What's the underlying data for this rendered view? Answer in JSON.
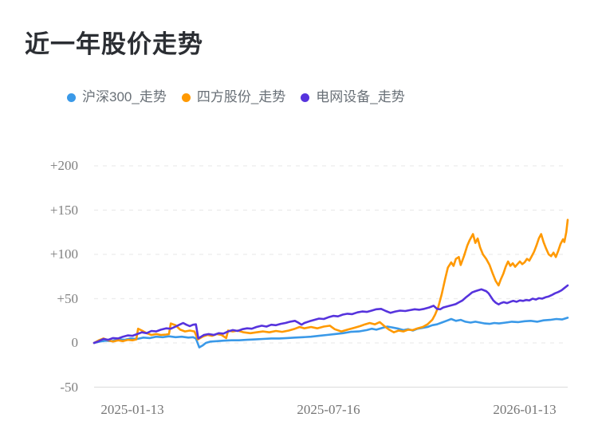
{
  "page": {
    "title": "近一年股价走势"
  },
  "chart_data": {
    "type": "line",
    "title": "近一年股价走势",
    "unit": "%",
    "legend_position": "top",
    "grid": true,
    "x_labels": [
      "2025-01-13",
      "2025-07-16",
      "2026-01-13"
    ],
    "x_range": [
      "2025-01-13",
      "2026-01-13"
    ],
    "y_labels": [
      "+200",
      "+150",
      "+100",
      "+50",
      "0",
      "-50"
    ],
    "y_ticks": [
      200,
      150,
      100,
      50,
      0,
      -50
    ],
    "y_range": [
      -50,
      200
    ],
    "series": [
      {
        "name": "沪深300_走势",
        "color": "#3a99e8",
        "points": [
          [
            0,
            0
          ],
          [
            0.012,
            1.5
          ],
          [
            0.024,
            2.5
          ],
          [
            0.037,
            2
          ],
          [
            0.051,
            4
          ],
          [
            0.064,
            3.5
          ],
          [
            0.077,
            5
          ],
          [
            0.091,
            4.5
          ],
          [
            0.104,
            6
          ],
          [
            0.118,
            5.5
          ],
          [
            0.131,
            7
          ],
          [
            0.145,
            6.5
          ],
          [
            0.158,
            7.5
          ],
          [
            0.172,
            6.5
          ],
          [
            0.185,
            7
          ],
          [
            0.199,
            6
          ],
          [
            0.209,
            6.5
          ],
          [
            0.215,
            5
          ],
          [
            0.222,
            -5
          ],
          [
            0.229,
            -3
          ],
          [
            0.236,
            0
          ],
          [
            0.246,
            1.5
          ],
          [
            0.259,
            2
          ],
          [
            0.273,
            2.5
          ],
          [
            0.29,
            3
          ],
          [
            0.306,
            3
          ],
          [
            0.323,
            3.5
          ],
          [
            0.34,
            4
          ],
          [
            0.357,
            4.5
          ],
          [
            0.374,
            5
          ],
          [
            0.391,
            5
          ],
          [
            0.407,
            5.5
          ],
          [
            0.424,
            6
          ],
          [
            0.441,
            6.5
          ],
          [
            0.458,
            7
          ],
          [
            0.475,
            8
          ],
          [
            0.492,
            9
          ],
          [
            0.508,
            10
          ],
          [
            0.525,
            11
          ],
          [
            0.542,
            12.5
          ],
          [
            0.559,
            13
          ],
          [
            0.576,
            14.5
          ],
          [
            0.586,
            16
          ],
          [
            0.596,
            15
          ],
          [
            0.609,
            17
          ],
          [
            0.619,
            18.5
          ],
          [
            0.63,
            17.5
          ],
          [
            0.643,
            16
          ],
          [
            0.653,
            14.5
          ],
          [
            0.663,
            15.5
          ],
          [
            0.673,
            14
          ],
          [
            0.683,
            16
          ],
          [
            0.694,
            17
          ],
          [
            0.704,
            18
          ],
          [
            0.714,
            20
          ],
          [
            0.724,
            21
          ],
          [
            0.734,
            23
          ],
          [
            0.744,
            25
          ],
          [
            0.754,
            27
          ],
          [
            0.764,
            25
          ],
          [
            0.774,
            26
          ],
          [
            0.784,
            24
          ],
          [
            0.795,
            23
          ],
          [
            0.805,
            24
          ],
          [
            0.815,
            23
          ],
          [
            0.825,
            22
          ],
          [
            0.835,
            21.5
          ],
          [
            0.845,
            22.5
          ],
          [
            0.855,
            22
          ],
          [
            0.869,
            23
          ],
          [
            0.882,
            24
          ],
          [
            0.896,
            23.5
          ],
          [
            0.909,
            24.5
          ],
          [
            0.922,
            25
          ],
          [
            0.936,
            24
          ],
          [
            0.949,
            25.5
          ],
          [
            0.963,
            26
          ],
          [
            0.976,
            27
          ],
          [
            0.988,
            26.5
          ],
          [
            1,
            28.5
          ]
        ]
      },
      {
        "name": "四方股份_走势",
        "color": "#ff9900",
        "points": [
          [
            0,
            0
          ],
          [
            0.01,
            3
          ],
          [
            0.02,
            5
          ],
          [
            0.03,
            3
          ],
          [
            0.04,
            1.5
          ],
          [
            0.051,
            3
          ],
          [
            0.061,
            2
          ],
          [
            0.071,
            3.5
          ],
          [
            0.081,
            3
          ],
          [
            0.089,
            4
          ],
          [
            0.093,
            16
          ],
          [
            0.101,
            14
          ],
          [
            0.111,
            11
          ],
          [
            0.121,
            9
          ],
          [
            0.131,
            10
          ],
          [
            0.141,
            9
          ],
          [
            0.152,
            9.5
          ],
          [
            0.158,
            10
          ],
          [
            0.162,
            22
          ],
          [
            0.172,
            20
          ],
          [
            0.182,
            15
          ],
          [
            0.192,
            13
          ],
          [
            0.202,
            14
          ],
          [
            0.212,
            13
          ],
          [
            0.219,
            4
          ],
          [
            0.229,
            7
          ],
          [
            0.239,
            9
          ],
          [
            0.249,
            8
          ],
          [
            0.259,
            10
          ],
          [
            0.269,
            9
          ],
          [
            0.279,
            5.5
          ],
          [
            0.283,
            14
          ],
          [
            0.293,
            13
          ],
          [
            0.303,
            14
          ],
          [
            0.316,
            12
          ],
          [
            0.33,
            11
          ],
          [
            0.343,
            12
          ],
          [
            0.357,
            13
          ],
          [
            0.37,
            12
          ],
          [
            0.384,
            13.5
          ],
          [
            0.397,
            12.5
          ],
          [
            0.411,
            14
          ],
          [
            0.424,
            16
          ],
          [
            0.434,
            18
          ],
          [
            0.444,
            16.5
          ],
          [
            0.458,
            18
          ],
          [
            0.471,
            16.5
          ],
          [
            0.485,
            18.5
          ],
          [
            0.498,
            19.5
          ],
          [
            0.508,
            15.5
          ],
          [
            0.522,
            13
          ],
          [
            0.535,
            15
          ],
          [
            0.549,
            17
          ],
          [
            0.562,
            19
          ],
          [
            0.572,
            21
          ],
          [
            0.582,
            22.5
          ],
          [
            0.593,
            21
          ],
          [
            0.603,
            23.5
          ],
          [
            0.613,
            19
          ],
          [
            0.623,
            15
          ],
          [
            0.633,
            12
          ],
          [
            0.643,
            14
          ],
          [
            0.653,
            13
          ],
          [
            0.663,
            15
          ],
          [
            0.673,
            14.5
          ],
          [
            0.683,
            16.5
          ],
          [
            0.694,
            18
          ],
          [
            0.704,
            21
          ],
          [
            0.714,
            26
          ],
          [
            0.72,
            32
          ],
          [
            0.727,
            41
          ],
          [
            0.734,
            55
          ],
          [
            0.741,
            72
          ],
          [
            0.747,
            85
          ],
          [
            0.754,
            91
          ],
          [
            0.759,
            87
          ],
          [
            0.764,
            95
          ],
          [
            0.77,
            97
          ],
          [
            0.774,
            88
          ],
          [
            0.781,
            98
          ],
          [
            0.788,
            110
          ],
          [
            0.793,
            116
          ],
          [
            0.8,
            123
          ],
          [
            0.805,
            113
          ],
          [
            0.81,
            118
          ],
          [
            0.815,
            108
          ],
          [
            0.821,
            100
          ],
          [
            0.828,
            95
          ],
          [
            0.835,
            88
          ],
          [
            0.842,
            78
          ],
          [
            0.848,
            70
          ],
          [
            0.854,
            65
          ],
          [
            0.859,
            72
          ],
          [
            0.864,
            78
          ],
          [
            0.869,
            86
          ],
          [
            0.874,
            92
          ],
          [
            0.879,
            87
          ],
          [
            0.884,
            90
          ],
          [
            0.889,
            86
          ],
          [
            0.894,
            89
          ],
          [
            0.899,
            92
          ],
          [
            0.904,
            89
          ],
          [
            0.909,
            91
          ],
          [
            0.914,
            95
          ],
          [
            0.919,
            93
          ],
          [
            0.924,
            98
          ],
          [
            0.929,
            103
          ],
          [
            0.934,
            110
          ],
          [
            0.939,
            118
          ],
          [
            0.944,
            123
          ],
          [
            0.949,
            114
          ],
          [
            0.954,
            107
          ],
          [
            0.96,
            100
          ],
          [
            0.965,
            98
          ],
          [
            0.97,
            102
          ],
          [
            0.975,
            97
          ],
          [
            0.98,
            104
          ],
          [
            0.985,
            112
          ],
          [
            0.99,
            117
          ],
          [
            0.993,
            114
          ],
          [
            0.997,
            125
          ],
          [
            1,
            139
          ]
        ]
      },
      {
        "name": "电网设备_走势",
        "color": "#5633dd",
        "points": [
          [
            0,
            0
          ],
          [
            0.01,
            2
          ],
          [
            0.02,
            4.5
          ],
          [
            0.03,
            3.5
          ],
          [
            0.04,
            5.5
          ],
          [
            0.051,
            5
          ],
          [
            0.061,
            7
          ],
          [
            0.071,
            8.5
          ],
          [
            0.081,
            8
          ],
          [
            0.091,
            10
          ],
          [
            0.101,
            12
          ],
          [
            0.111,
            11
          ],
          [
            0.121,
            13.5
          ],
          [
            0.131,
            13
          ],
          [
            0.141,
            15
          ],
          [
            0.152,
            16.5
          ],
          [
            0.162,
            16
          ],
          [
            0.172,
            18.5
          ],
          [
            0.182,
            21
          ],
          [
            0.188,
            22.5
          ],
          [
            0.195,
            20.5
          ],
          [
            0.202,
            19
          ],
          [
            0.209,
            20.5
          ],
          [
            0.215,
            21
          ],
          [
            0.22,
            5
          ],
          [
            0.226,
            7
          ],
          [
            0.232,
            9
          ],
          [
            0.242,
            10
          ],
          [
            0.253,
            9
          ],
          [
            0.263,
            11
          ],
          [
            0.273,
            10.5
          ],
          [
            0.283,
            13
          ],
          [
            0.293,
            14.5
          ],
          [
            0.303,
            13.5
          ],
          [
            0.313,
            15.5
          ],
          [
            0.323,
            16.5
          ],
          [
            0.333,
            16
          ],
          [
            0.343,
            18
          ],
          [
            0.354,
            19.5
          ],
          [
            0.364,
            18.5
          ],
          [
            0.374,
            20.5
          ],
          [
            0.384,
            20
          ],
          [
            0.394,
            21.5
          ],
          [
            0.404,
            22.5
          ],
          [
            0.414,
            24
          ],
          [
            0.424,
            25
          ],
          [
            0.431,
            23
          ],
          [
            0.438,
            20.5
          ],
          [
            0.444,
            22.5
          ],
          [
            0.455,
            24.5
          ],
          [
            0.465,
            26
          ],
          [
            0.475,
            27.5
          ],
          [
            0.485,
            27
          ],
          [
            0.495,
            29
          ],
          [
            0.505,
            30.5
          ],
          [
            0.515,
            30
          ],
          [
            0.525,
            32
          ],
          [
            0.535,
            33
          ],
          [
            0.545,
            32.5
          ],
          [
            0.556,
            34.5
          ],
          [
            0.566,
            35.5
          ],
          [
            0.576,
            35
          ],
          [
            0.586,
            36.5
          ],
          [
            0.596,
            38
          ],
          [
            0.606,
            38.5
          ],
          [
            0.616,
            36
          ],
          [
            0.626,
            34
          ],
          [
            0.636,
            35.5
          ],
          [
            0.646,
            36.5
          ],
          [
            0.657,
            36
          ],
          [
            0.667,
            37
          ],
          [
            0.677,
            38
          ],
          [
            0.687,
            37.5
          ],
          [
            0.697,
            38.5
          ],
          [
            0.707,
            40
          ],
          [
            0.717,
            42
          ],
          [
            0.724,
            38.5
          ],
          [
            0.731,
            38
          ],
          [
            0.737,
            40
          ],
          [
            0.744,
            41
          ],
          [
            0.751,
            42
          ],
          [
            0.758,
            43
          ],
          [
            0.764,
            44
          ],
          [
            0.771,
            46
          ],
          [
            0.778,
            48
          ],
          [
            0.784,
            51
          ],
          [
            0.791,
            54
          ],
          [
            0.798,
            57
          ],
          [
            0.805,
            58.5
          ],
          [
            0.811,
            59.5
          ],
          [
            0.818,
            60.5
          ],
          [
            0.823,
            59.5
          ],
          [
            0.828,
            58.5
          ],
          [
            0.833,
            56
          ],
          [
            0.838,
            52
          ],
          [
            0.843,
            48
          ],
          [
            0.848,
            45.5
          ],
          [
            0.854,
            43.5
          ],
          [
            0.859,
            45
          ],
          [
            0.865,
            46
          ],
          [
            0.872,
            45
          ],
          [
            0.879,
            46.5
          ],
          [
            0.885,
            47.5
          ],
          [
            0.892,
            46.5
          ],
          [
            0.899,
            48
          ],
          [
            0.906,
            47.5
          ],
          [
            0.912,
            48.5
          ],
          [
            0.919,
            48
          ],
          [
            0.926,
            50
          ],
          [
            0.933,
            49
          ],
          [
            0.939,
            50.5
          ],
          [
            0.946,
            50
          ],
          [
            0.953,
            51.5
          ],
          [
            0.96,
            52.5
          ],
          [
            0.966,
            54
          ],
          [
            0.973,
            56
          ],
          [
            0.98,
            57.5
          ],
          [
            0.987,
            59.5
          ],
          [
            0.993,
            62
          ],
          [
            1,
            65
          ]
        ]
      }
    ]
  }
}
